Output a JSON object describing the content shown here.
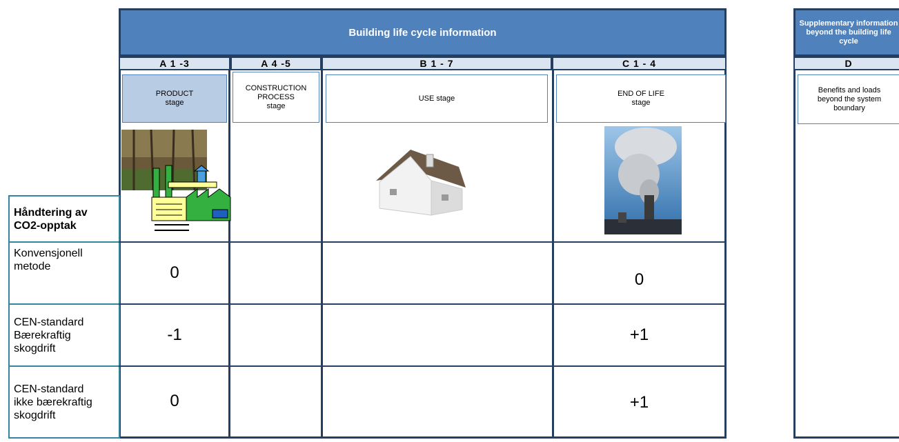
{
  "header": {
    "title": "Building life cycle information",
    "supplementary": "Supplementary information beyond the building life cycle"
  },
  "stages": [
    {
      "code": "A 1 -3",
      "name": "PRODUCT\nstage"
    },
    {
      "code": "A 4 -5",
      "name": "CONSTRUCTION\nPROCESS\nstage"
    },
    {
      "code": "B 1 - 7",
      "name": "USE stage"
    },
    {
      "code": "C 1 - 4",
      "name": "END OF LIFE\nstage"
    },
    {
      "code": "D",
      "name": "Benefits and loads\nbeyond the system\nboundary"
    }
  ],
  "table": {
    "header": "Håndtering av\nCO2-opptak",
    "rows": [
      {
        "label": "Konvensjonell\nmetode",
        "product": "0",
        "end_of_life": "0"
      },
      {
        "label": "CEN-standard\nBærekraftig\nskogdrift",
        "product": "-1",
        "end_of_life": "+1"
      },
      {
        "label": "CEN-standard\nikke bærekraftig\nskogdrift",
        "product": "0",
        "end_of_life": "+1"
      }
    ]
  }
}
